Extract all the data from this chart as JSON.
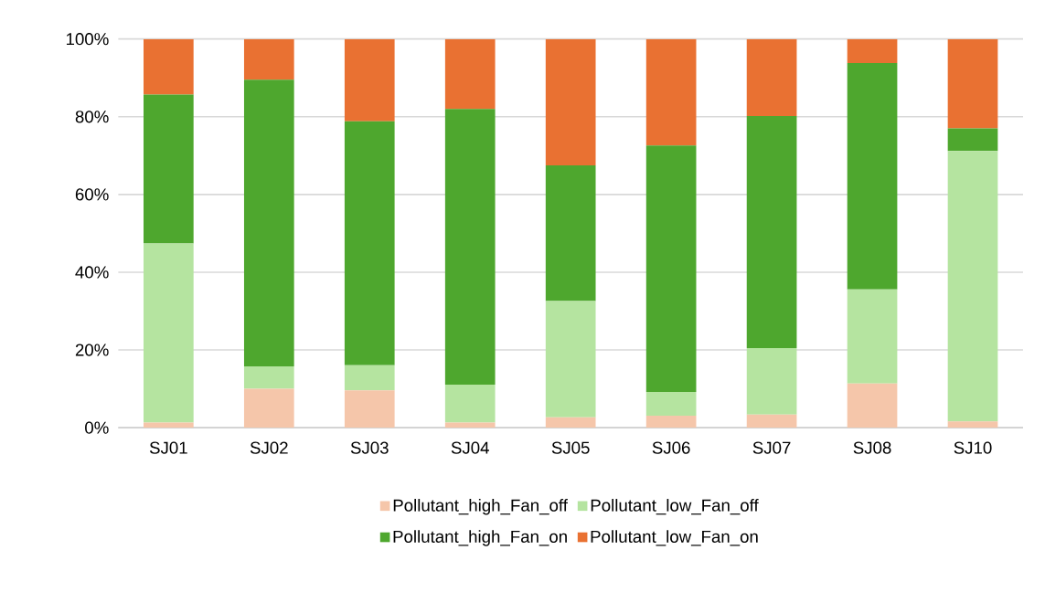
{
  "chart_data": {
    "type": "bar",
    "stacked": true,
    "categories": [
      "SJ01",
      "SJ02",
      "SJ03",
      "SJ04",
      "SJ05",
      "SJ06",
      "SJ07",
      "SJ08",
      "SJ10"
    ],
    "series": [
      {
        "name": "Pollutant_high_Fan_off",
        "color": "#f5c6aa",
        "values": [
          1.3,
          10.0,
          9.6,
          1.3,
          2.7,
          3.1,
          3.4,
          11.4,
          1.6
        ]
      },
      {
        "name": "Pollutant_low_Fan_off",
        "color": "#b5e4a0",
        "values": [
          46.1,
          5.8,
          6.5,
          9.8,
          29.9,
          6.1,
          17.1,
          24.2,
          69.6
        ]
      },
      {
        "name": "Pollutant_high_Fan_on",
        "color": "#4ea72e",
        "values": [
          38.3,
          73.7,
          62.7,
          70.9,
          34.9,
          63.4,
          59.7,
          58.2,
          5.8
        ]
      },
      {
        "name": "Pollutant_low_Fan_on",
        "color": "#e97132",
        "values": [
          14.3,
          10.5,
          21.2,
          18.0,
          32.5,
          27.4,
          19.8,
          6.2,
          23.0
        ]
      }
    ],
    "ylim": [
      0,
      100
    ],
    "yticks": [
      {
        "value": 0,
        "label": "0%"
      },
      {
        "value": 20,
        "label": "20%"
      },
      {
        "value": 40,
        "label": "40%"
      },
      {
        "value": 60,
        "label": "60%"
      },
      {
        "value": 80,
        "label": "80%"
      },
      {
        "value": 100,
        "label": "100%"
      }
    ],
    "grid": "y",
    "legend": "bottom"
  }
}
